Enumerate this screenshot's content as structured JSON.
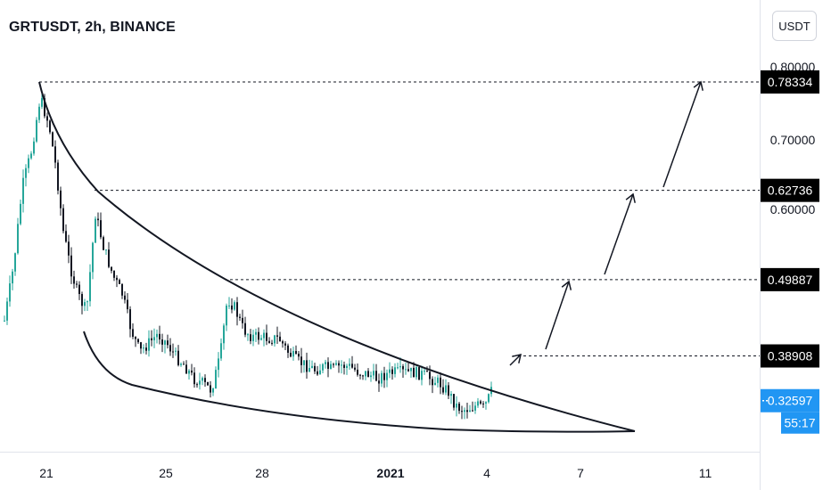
{
  "header": {
    "title": "GRTUSDT, 2h, BINANCE",
    "currency": "USDT"
  },
  "chart_data": {
    "type": "candlestick",
    "symbol": "GRTUSDT",
    "interval": "2h",
    "exchange": "BINANCE",
    "price_ticks": [
      "0.70000",
      "0.60000"
    ],
    "price_tick_values": [
      0.7,
      0.6
    ],
    "partially_hidden_ticks": [
      "0.80000"
    ],
    "date_ticks": [
      {
        "label": "21",
        "bold": false
      },
      {
        "label": "25",
        "bold": false
      },
      {
        "label": "28",
        "bold": false
      },
      {
        "label": "2021",
        "bold": true
      },
      {
        "label": "4",
        "bold": false
      },
      {
        "label": "7",
        "bold": false
      },
      {
        "label": "11",
        "bold": false
      }
    ],
    "levels": [
      {
        "label": "0.78334",
        "value": 0.78334
      },
      {
        "label": "0.62736",
        "value": 0.62736
      },
      {
        "label": "0.49887",
        "value": 0.49887
      },
      {
        "label": "0.38908",
        "value": 0.38908
      }
    ],
    "current_price": {
      "label": "0.32597",
      "value": 0.32597,
      "countdown": "55:17",
      "color": "#2196f3"
    },
    "colors": {
      "up": "#26a69a",
      "down": "#131722",
      "current": "#2196f3",
      "label_bg": "#000000"
    }
  }
}
